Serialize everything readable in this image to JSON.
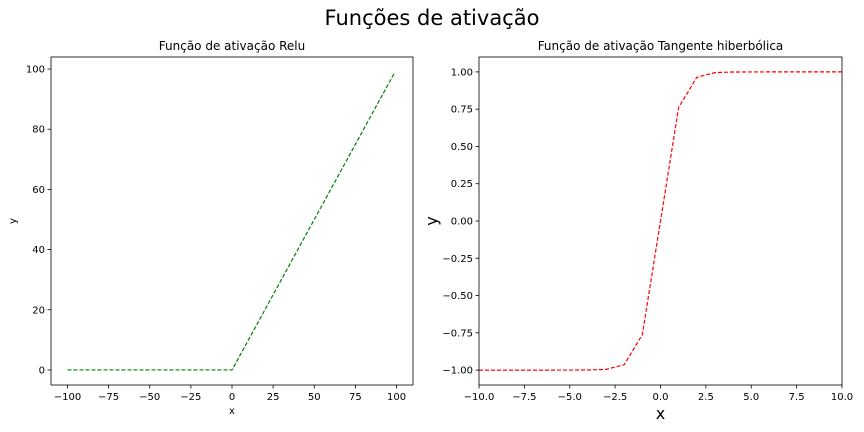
{
  "suptitle": "Funções de ativação",
  "chart_data": [
    {
      "type": "line",
      "title": "Função de ativação Relu",
      "xlabel": "x",
      "ylabel": "y",
      "xlim": [
        -110,
        110
      ],
      "ylim": [
        -5,
        104
      ],
      "xticks": [
        -100,
        -75,
        -50,
        -25,
        0,
        25,
        50,
        75,
        100
      ],
      "xtick_labels": [
        "−100",
        "−75",
        "−50",
        "−25",
        "0",
        "25",
        "50",
        "75",
        "100"
      ],
      "yticks": [
        0,
        20,
        40,
        60,
        80,
        100
      ],
      "ytick_labels": [
        "0",
        "20",
        "40",
        "60",
        "80",
        "100"
      ],
      "grid": false,
      "series": [
        {
          "color": "#008000",
          "linestyle": "dashed",
          "x": [
            -100,
            0,
            99
          ],
          "y": [
            0,
            0,
            99
          ]
        }
      ]
    },
    {
      "type": "line",
      "title": "Função de ativação Tangente hiberbólica",
      "xlabel": "x",
      "ylabel": "y",
      "xlim": [
        -10,
        10
      ],
      "ylim": [
        -1.1,
        1.1
      ],
      "xticks": [
        -10,
        -7.5,
        -5,
        -2.5,
        0,
        2.5,
        5,
        7.5,
        10
      ],
      "xtick_labels": [
        "−10.0",
        "−7.5",
        "−5.0",
        "−2.5",
        "0.0",
        "2.5",
        "5.0",
        "7.5",
        "10.0"
      ],
      "yticks": [
        -1,
        -0.75,
        -0.5,
        -0.25,
        0,
        0.25,
        0.5,
        0.75,
        1
      ],
      "ytick_labels": [
        "−1.00",
        "−0.75",
        "−0.50",
        "−0.25",
        "0.00",
        "0.25",
        "0.50",
        "0.75",
        "1.00"
      ],
      "grid": false,
      "series": [
        {
          "color": "#ff0000",
          "linestyle": "dashed",
          "x": [
            -10,
            -9,
            -8,
            -7,
            -6,
            -5,
            -4,
            -3,
            -2,
            -1,
            0,
            1,
            2,
            3,
            4,
            5,
            6,
            7,
            8,
            9,
            10
          ],
          "y": [
            -1,
            -1,
            -1,
            -1,
            -1,
            -0.9999,
            -0.9993,
            -0.9951,
            -0.964,
            -0.7616,
            0,
            0.7616,
            0.964,
            0.9951,
            0.9993,
            0.9999,
            1,
            1,
            1,
            1,
            1
          ]
        }
      ]
    }
  ]
}
